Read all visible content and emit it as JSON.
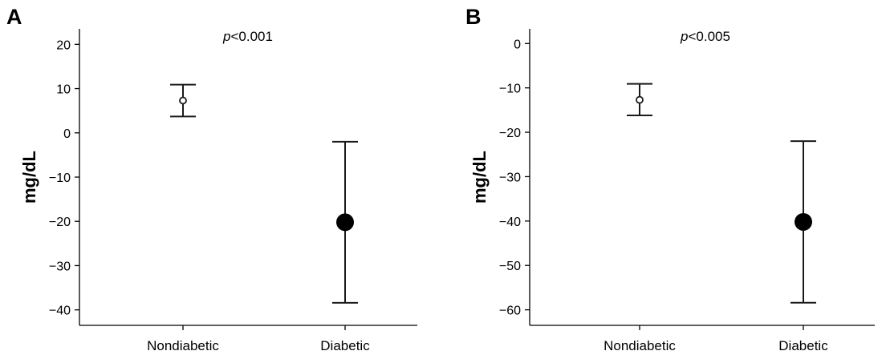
{
  "chart_data": [
    {
      "panel_label": "A",
      "type": "scatter",
      "ylabel": "mg/dL",
      "categories": [
        "Nondiabetic",
        "Diabetic"
      ],
      "ylim": [
        -43.5,
        23.5
      ],
      "yticks": [
        20,
        10,
        0,
        -10,
        -20,
        -30,
        -40
      ],
      "ytick_labels": [
        "20",
        "10",
        "0",
        "−10",
        "−20",
        "−30",
        "−40"
      ],
      "annotation": {
        "italic": "p",
        "text": "<0.001"
      },
      "series": [
        {
          "marker": "open-circle",
          "points": [
            {
              "category": "Nondiabetic",
              "mean": 7.3,
              "lower": 3.7,
              "upper": 10.9
            }
          ]
        },
        {
          "marker": "filled-circle",
          "points": [
            {
              "category": "Diabetic",
              "mean": -20.2,
              "lower": -38.4,
              "upper": -2.0
            }
          ]
        }
      ]
    },
    {
      "panel_label": "B",
      "type": "scatter",
      "ylabel": "mg/dL",
      "categories": [
        "Nondiabetic",
        "Diabetic"
      ],
      "ylim": [
        -63.5,
        3.3
      ],
      "yticks": [
        0,
        -10,
        -20,
        -30,
        -40,
        -50,
        -60
      ],
      "ytick_labels": [
        "0",
        "−10",
        "−20",
        "−30",
        "−40",
        "−50",
        "−60"
      ],
      "annotation": {
        "italic": "p",
        "text": "<0.005"
      },
      "series": [
        {
          "marker": "open-circle",
          "points": [
            {
              "category": "Nondiabetic",
              "mean": -12.7,
              "lower": -16.2,
              "upper": -9.1
            }
          ]
        },
        {
          "marker": "filled-circle",
          "points": [
            {
              "category": "Diabetic",
              "mean": -40.2,
              "lower": -58.4,
              "upper": -22.0
            }
          ]
        }
      ]
    }
  ]
}
